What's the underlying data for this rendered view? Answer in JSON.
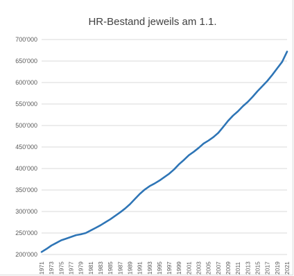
{
  "chart_data": {
    "type": "line",
    "title": "HR-Bestand jeweils am 1.1.",
    "xlabel": "",
    "ylabel": "",
    "ylim": [
      200000,
      700000
    ],
    "grid": true,
    "yticks": [
      "200'000",
      "250'000",
      "300'000",
      "350'000",
      "400'000",
      "450'000",
      "500'000",
      "550'000",
      "600'000",
      "650'000",
      "700'000"
    ],
    "xtick_labels": [
      "1971",
      "1973",
      "1975",
      "1977",
      "1979",
      "1981",
      "1983",
      "1985",
      "1987",
      "1989",
      "1991",
      "1993",
      "1995",
      "1997",
      "1999",
      "2001",
      "2003",
      "2005",
      "2007",
      "2009",
      "2011",
      "2013",
      "2015",
      "2017",
      "2019",
      "2021"
    ],
    "colors": {
      "line": "#2e75b6",
      "grid": "#d9d9d9"
    },
    "x": [
      1971,
      1972,
      1973,
      1974,
      1975,
      1976,
      1977,
      1978,
      1979,
      1980,
      1981,
      1982,
      1983,
      1984,
      1985,
      1986,
      1987,
      1988,
      1989,
      1990,
      1991,
      1992,
      1993,
      1994,
      1995,
      1996,
      1997,
      1998,
      1999,
      2000,
      2001,
      2002,
      2003,
      2004,
      2005,
      2006,
      2007,
      2008,
      2009,
      2010,
      2011,
      2012,
      2013,
      2014,
      2015,
      2016,
      2017,
      2018,
      2019,
      2020,
      2021
    ],
    "series": [
      {
        "values": [
          206000,
          213000,
          221000,
          227000,
          233000,
          237000,
          241000,
          245000,
          247000,
          250000,
          256000,
          262000,
          268000,
          275000,
          282000,
          290000,
          298000,
          307000,
          317000,
          329000,
          341000,
          351000,
          359000,
          365000,
          372000,
          380000,
          388000,
          398000,
          410000,
          420000,
          431000,
          439000,
          448000,
          458000,
          465000,
          473000,
          483000,
          497000,
          511000,
          523000,
          533000,
          545000,
          555000,
          567000,
          580000,
          592000,
          604000,
          618000,
          633000,
          648000,
          672000
        ]
      }
    ]
  }
}
